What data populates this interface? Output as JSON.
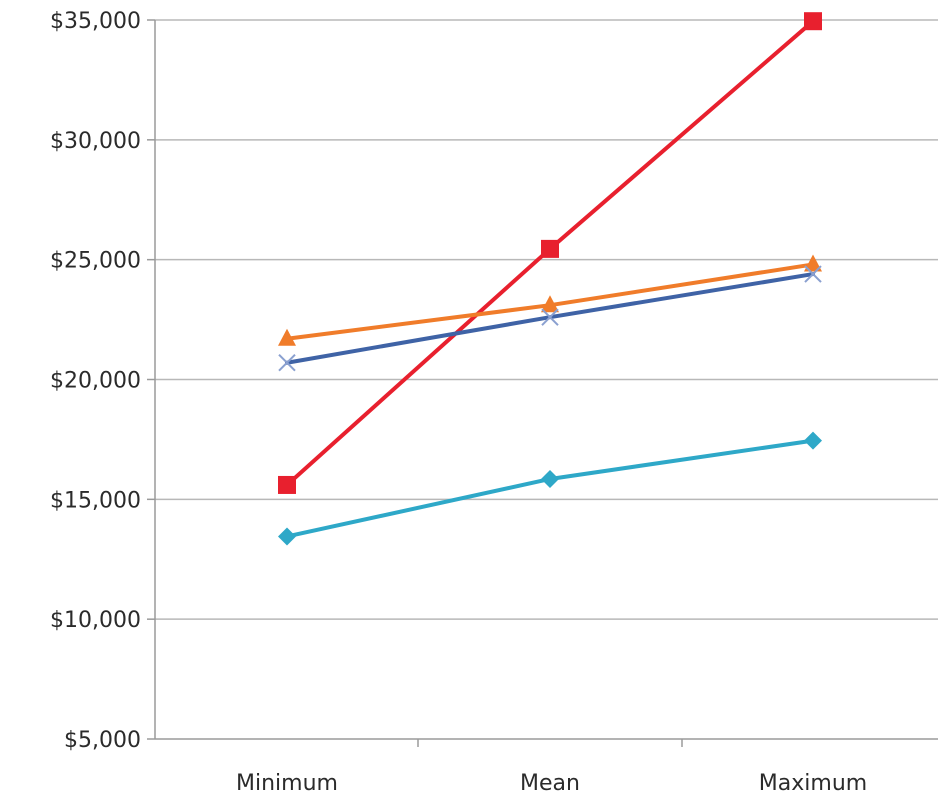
{
  "chart_data": {
    "type": "line",
    "categories": [
      "Minimum",
      "Mean",
      "Maximum"
    ],
    "ylim": [
      5000,
      35000
    ],
    "y_ticks": [
      5000,
      10000,
      15000,
      20000,
      25000,
      30000,
      35000
    ],
    "y_tick_labels": [
      "$5,000",
      "$10,000",
      "$15,000",
      "$20,000",
      "$25,000",
      "$30,000",
      "$35,000"
    ],
    "grid": true,
    "series": [
      {
        "values": [
          15600,
          25450,
          34950
        ],
        "color": "#e8202e",
        "marker": "square"
      },
      {
        "values": [
          21700,
          23100,
          24800
        ],
        "color": "#f07c2a",
        "marker": "triangle"
      },
      {
        "values": [
          20700,
          22600,
          24400
        ],
        "color": "#3f63a6",
        "marker": "x"
      },
      {
        "values": [
          13450,
          15850,
          17450
        ],
        "color": "#2ea8c8",
        "marker": "diamond"
      }
    ]
  }
}
